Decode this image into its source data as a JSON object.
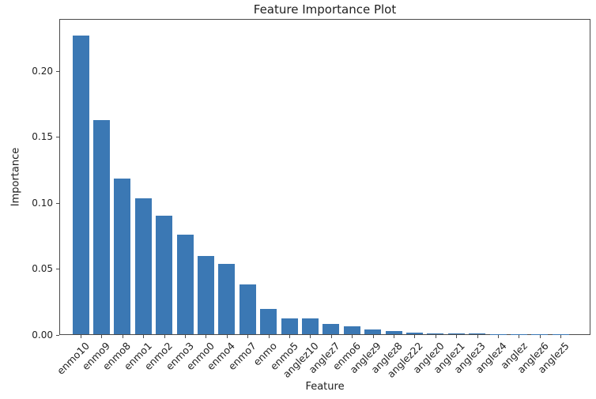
{
  "figure": {
    "background_color": "#ffffff"
  },
  "chart_data": {
    "type": "bar",
    "title": "Feature Importance Plot",
    "xlabel": "Feature",
    "ylabel": "Importance",
    "categories": [
      "enmo10",
      "enmo9",
      "enmo8",
      "enmo1",
      "enmo2",
      "enmo3",
      "enmo0",
      "enmo4",
      "enmo7",
      "enmo",
      "enmo5",
      "anglez10",
      "anglez7",
      "enmo6",
      "anglez9",
      "anglez8",
      "anglez22",
      "anglez0",
      "anglez1",
      "anglez3",
      "anglez4",
      "anglez",
      "anglez6",
      "anglez5"
    ],
    "values": [
      0.226,
      0.162,
      0.118,
      0.103,
      0.0895,
      0.0755,
      0.059,
      0.0535,
      0.0375,
      0.019,
      0.012,
      0.0118,
      0.0075,
      0.0057,
      0.0038,
      0.0024,
      0.0013,
      0.0009,
      0.0006,
      0.0004,
      0.0002,
      0.0001,
      0.0001,
      5e-05
    ],
    "ylim": [
      0,
      0.238
    ],
    "yticks": [
      0,
      0.05,
      0.1,
      0.15,
      0.2
    ],
    "ytick_labels": [
      "0.00",
      "0.05",
      "0.10",
      "0.15",
      "0.20"
    ],
    "x_tick_rotation_deg": 45,
    "bar_color": "#3b78b4",
    "axis_color": "#4a4a4a",
    "text_color": "#1f1f1f",
    "grid": false,
    "legend": "none"
  }
}
